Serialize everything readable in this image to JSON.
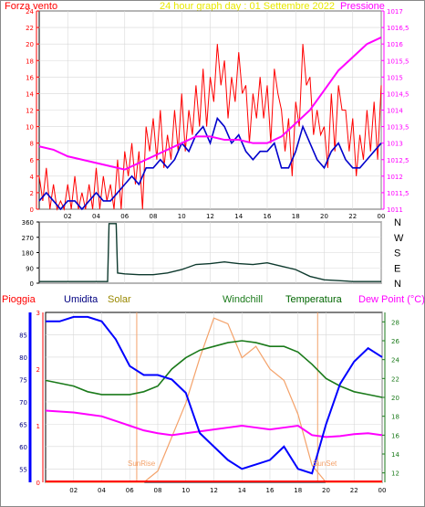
{
  "header": {
    "left_label": "Forza vento",
    "center_title": "24 hour graph day : 01 Settembre 2022",
    "right_label": "Pressione"
  },
  "colors": {
    "wind": "#ff0000",
    "gust_avg": "#0000cc",
    "pressure": "#ff00ff",
    "direction": "#0e3a2e",
    "humidity": "#0000ff",
    "solar": "#f4a26a",
    "windchill": "#1a7a1a",
    "dewpoint": "#ff00ff",
    "rain": "#ff0000",
    "title_yellow": "#e8e800",
    "humidity_label": "#000080",
    "solar_label": "#998800",
    "temp_label": "#006600"
  },
  "chart_data": [
    {
      "type": "line",
      "name": "wind-pressure",
      "x_ticks": [
        "02",
        "04",
        "06",
        "08",
        "10",
        "12",
        "14",
        "16",
        "18",
        "20",
        "22",
        "00"
      ],
      "left_axis_ticks": [
        "0",
        "2",
        "4",
        "6",
        "8",
        "10",
        "12",
        "14",
        "16",
        "18",
        "20",
        "22",
        "24"
      ],
      "right_axis_ticks": [
        "1011",
        "1011,5",
        "1012",
        "1012,5",
        "1013",
        "1013,5",
        "1014",
        "1014,5",
        "1015",
        "1015,5",
        "1016",
        "1016,5",
        "1017"
      ],
      "ylim_left": [
        0,
        24
      ],
      "ylim_right": [
        1011,
        1017
      ],
      "series": [
        {
          "values_key": "wind",
          "x": [
            0,
            0.5,
            1,
            1.5,
            2,
            2.5,
            3,
            3.5,
            4,
            4.5,
            5,
            5.5,
            6,
            6.5,
            7,
            7.5,
            8,
            8.5,
            9,
            9.5,
            10,
            10.5,
            11,
            11.5,
            12,
            12.5,
            13,
            13.5,
            14,
            14.5,
            15,
            15.5,
            16,
            16.5,
            17,
            17.5,
            18,
            18.5,
            19,
            19.5,
            20,
            20.5,
            21,
            21.5,
            22,
            22.5,
            23,
            23.5,
            24
          ],
          "values": [
            4,
            5,
            3,
            1,
            3,
            4,
            2,
            3,
            5,
            4,
            3,
            6,
            7,
            8,
            7,
            10,
            11,
            12,
            9,
            12,
            14,
            12,
            15,
            17,
            16,
            20,
            18,
            16,
            19,
            15,
            14,
            16,
            15,
            17,
            12,
            11,
            13,
            20,
            16,
            12,
            10,
            14,
            15,
            12,
            11,
            9,
            12,
            13,
            15
          ]
        },
        {
          "values_key": "gust_avg",
          "x": [
            0,
            0.5,
            1,
            1.5,
            2,
            2.5,
            3,
            3.5,
            4,
            4.5,
            5,
            5.5,
            6,
            6.5,
            7,
            7.5,
            8,
            8.5,
            9,
            9.5,
            10,
            10.5,
            11,
            11.5,
            12,
            12.5,
            13,
            13.5,
            14,
            14.5,
            15,
            15.5,
            16,
            16.5,
            17,
            17.5,
            18,
            18.5,
            19,
            19.5,
            20,
            20.5,
            21,
            21.5,
            22,
            22.5,
            23,
            23.5,
            24
          ],
          "values": [
            1,
            2,
            1,
            0,
            1,
            1,
            0,
            1,
            2,
            1,
            1,
            2,
            3,
            4,
            3,
            5,
            5,
            6,
            5,
            6,
            8,
            7,
            9,
            10,
            8,
            11,
            10,
            8,
            9,
            7,
            6,
            7,
            7,
            8,
            5,
            5,
            7,
            10,
            8,
            6,
            5,
            7,
            8,
            6,
            5,
            5,
            6,
            7,
            8
          ]
        },
        {
          "values_key": "pressure",
          "x": [
            0,
            1,
            2,
            3,
            4,
            5,
            6,
            7,
            8,
            9,
            10,
            11,
            12,
            13,
            14,
            15,
            16,
            17,
            18,
            19,
            20,
            21,
            22,
            23,
            24
          ],
          "values": [
            1012.9,
            1012.8,
            1012.6,
            1012.5,
            1012.4,
            1012.3,
            1012.2,
            1012.4,
            1012.6,
            1012.8,
            1013.0,
            1013.2,
            1013.2,
            1013.1,
            1013.1,
            1013.0,
            1013.0,
            1013.2,
            1013.6,
            1014.0,
            1014.6,
            1015.2,
            1015.6,
            1016.0,
            1016.2
          ]
        }
      ]
    },
    {
      "type": "line",
      "name": "wind-direction",
      "y_ticks": [
        "0",
        "90",
        "180",
        "270",
        "360"
      ],
      "right_labels": [
        "N",
        "W",
        "S",
        "E",
        "N"
      ],
      "ylim": [
        0,
        360
      ],
      "x": [
        0,
        1,
        2,
        3,
        4,
        4.8,
        4.9,
        5.4,
        5.5,
        6,
        7,
        8,
        9,
        10,
        11,
        12,
        13,
        14,
        15,
        16,
        17,
        18,
        19,
        20,
        21,
        22,
        23,
        24
      ],
      "values": [
        10,
        10,
        10,
        10,
        10,
        10,
        350,
        350,
        60,
        55,
        50,
        50,
        60,
        80,
        110,
        115,
        125,
        115,
        110,
        120,
        100,
        80,
        40,
        20,
        15,
        10,
        10,
        10
      ]
    },
    {
      "type": "line",
      "name": "humidity-temperature",
      "legend": [
        "Pioggia",
        "Umidita",
        "Solar",
        "Windchill",
        "Temperatura",
        "Dew Point (°C)"
      ],
      "humidity_ticks": [
        "55",
        "60",
        "65",
        "70",
        "75",
        "80",
        "85"
      ],
      "rain_ticks": [
        "0",
        "1",
        "2",
        "3"
      ],
      "temp_ticks": [
        "12",
        "14",
        "16",
        "18",
        "20",
        "22",
        "24",
        "26",
        "28"
      ],
      "annotations": [
        "SunRise",
        "SunSet"
      ],
      "ylim_humidity": [
        52,
        90
      ],
      "ylim_temp": [
        11,
        29
      ],
      "x": [
        0,
        1,
        2,
        3,
        4,
        5,
        6,
        7,
        8,
        9,
        10,
        11,
        12,
        13,
        14,
        15,
        16,
        17,
        18,
        19,
        20,
        21,
        22,
        23,
        24
      ],
      "humidity": [
        88,
        88,
        89,
        89,
        88,
        84,
        78,
        76,
        76,
        75,
        72,
        63,
        60,
        57,
        55,
        56,
        57,
        60,
        55,
        54,
        65,
        74,
        79,
        82,
        80
      ],
      "windchill": [
        21.8,
        21.5,
        21.2,
        20.6,
        20.3,
        20.3,
        20.3,
        20.6,
        21.2,
        23,
        24.2,
        25,
        25.4,
        25.8,
        26,
        25.8,
        25.4,
        25.4,
        24.8,
        23.5,
        22,
        21.2,
        20.6,
        20.3,
        20
      ],
      "dewpoint": [
        18.6,
        18.5,
        18.4,
        18.2,
        18,
        17.5,
        17,
        16.5,
        16.2,
        16,
        16.2,
        16.4,
        16.6,
        16.8,
        17,
        16.8,
        16.6,
        16.8,
        17,
        16,
        15.8,
        15.9,
        16.1,
        16.2,
        16
      ],
      "solar": [
        0,
        0,
        0,
        0,
        0,
        0,
        0,
        0,
        0.2,
        0.8,
        1.4,
        2.2,
        2.9,
        2.8,
        2.2,
        2.4,
        2.0,
        1.8,
        1.2,
        0.3,
        0,
        0,
        0,
        0,
        0
      ],
      "solar_unit_max": 3
    }
  ]
}
